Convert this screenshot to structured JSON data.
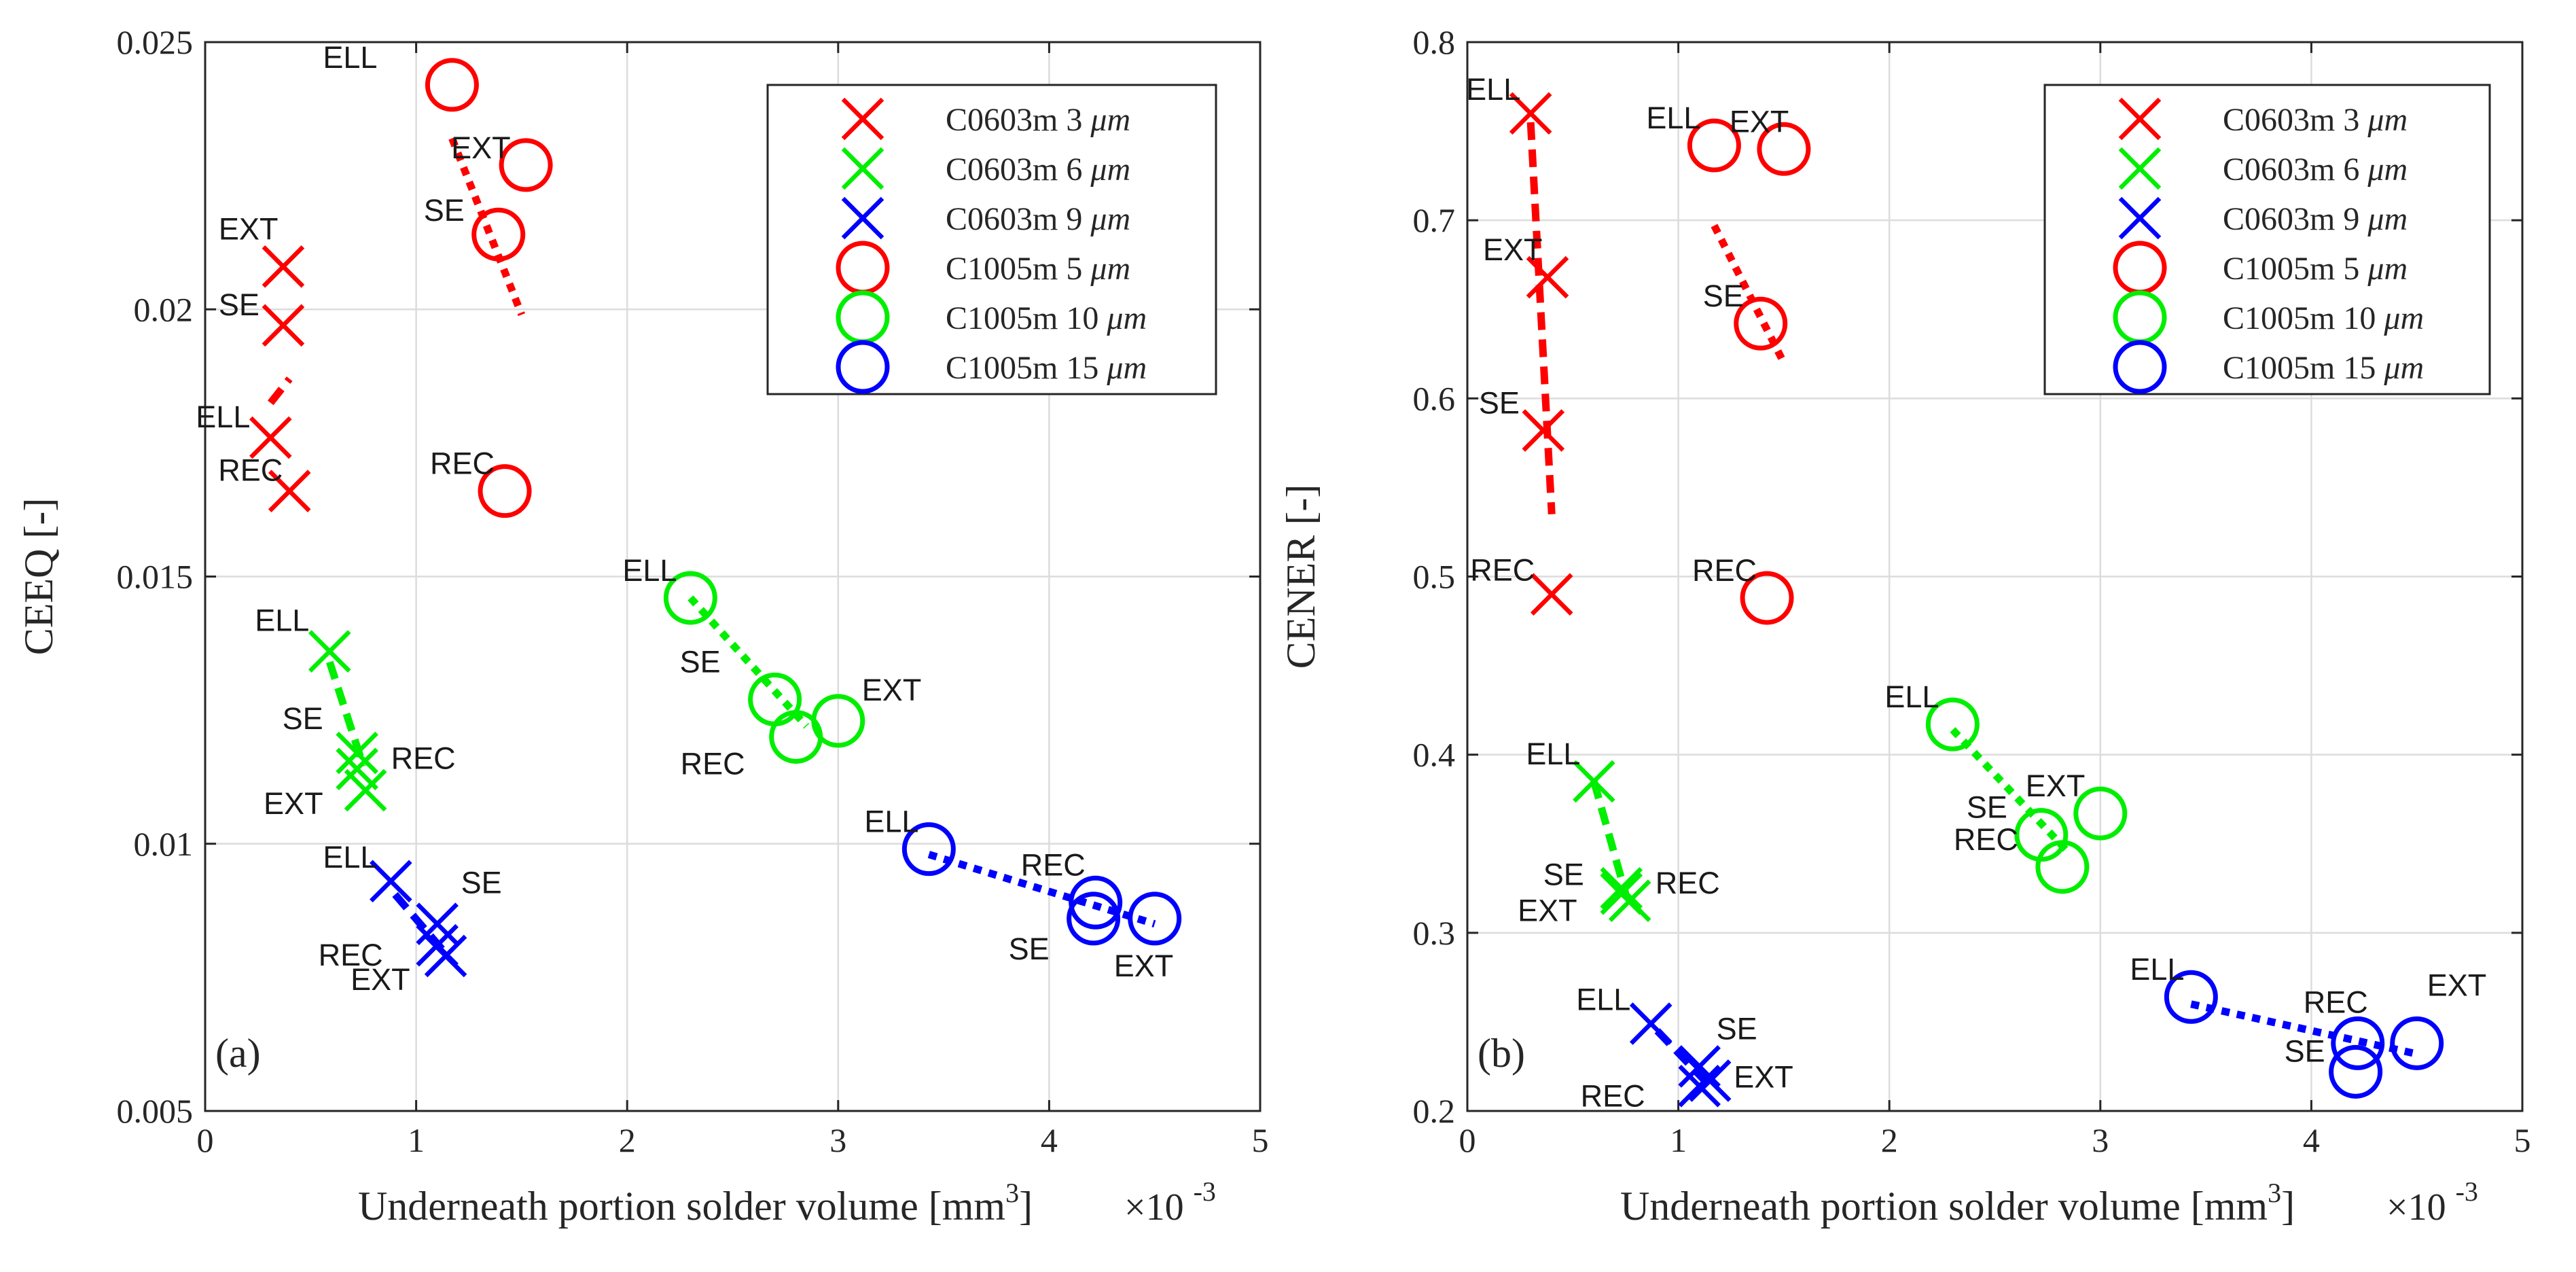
{
  "figure": {
    "caption_note": ""
  },
  "chart_data": [
    {
      "type": "scatter",
      "panel_label": "(a)",
      "xlabel": "Underneath portion solder volume [mm",
      "xlabel_sup": "3",
      "xlabel_tail": "]",
      "x_multiplier": "×10",
      "x_multiplier_exp": "-3",
      "ylabel": "CEEQ [-]",
      "xlim": [
        0,
        5
      ],
      "ylim": [
        0.005,
        0.025
      ],
      "xticks": [
        0,
        1,
        2,
        3,
        4,
        5
      ],
      "xtick_labels": [
        "0",
        "1",
        "2",
        "3",
        "4",
        "5"
      ],
      "yticks": [
        0.005,
        0.01,
        0.015,
        0.02,
        0.025
      ],
      "ytick_labels": [
        "0.005",
        "0.01",
        "0.015",
        "0.02",
        "0.025"
      ],
      "grid": true,
      "legend_position": "top-right",
      "series": [
        {
          "name": "C0603m 3 μm",
          "marker": "x",
          "color": "#ff0000",
          "line_style": "dash",
          "points": [
            {
              "label": "EXT",
              "x": 0.37,
              "y": 0.0208
            },
            {
              "label": "SE",
              "x": 0.37,
              "y": 0.0197
            },
            {
              "label": "ELL",
              "x": 0.31,
              "y": 0.0176
            },
            {
              "label": "REC",
              "x": 0.4,
              "y": 0.0166
            }
          ],
          "trend": {
            "x": [
              0.31,
              0.4
            ],
            "y": [
              0.01825,
              0.0187
            ]
          }
        },
        {
          "name": "C0603m 6 μm",
          "marker": "x",
          "color": "#00ee00",
          "line_style": "dash",
          "points": [
            {
              "label": "ELL",
              "x": 0.59,
              "y": 0.0136
            },
            {
              "label": "SE",
              "x": 0.72,
              "y": 0.0117
            },
            {
              "label": "REC",
              "x": 0.72,
              "y": 0.0114
            },
            {
              "label": "EXT",
              "x": 0.76,
              "y": 0.011
            }
          ],
          "trend": {
            "x": [
              0.59,
              0.75
            ],
            "y": [
              0.0134,
              0.01145
            ]
          }
        },
        {
          "name": "C0603m 9 μm",
          "marker": "x",
          "color": "#0000ff",
          "line_style": "dash",
          "points": [
            {
              "label": "ELL",
              "x": 0.88,
              "y": 0.0093
            },
            {
              "label": "SE",
              "x": 1.1,
              "y": 0.0085
            },
            {
              "label": "REC",
              "x": 1.1,
              "y": 0.0081
            },
            {
              "label": "EXT",
              "x": 1.14,
              "y": 0.0079
            }
          ],
          "trend": {
            "x": [
              0.9,
              1.15
            ],
            "y": [
              0.00905,
              0.0079
            ]
          }
        },
        {
          "name": "C1005m 5 μm",
          "marker": "o",
          "color": "#ff0000",
          "line_style": "dot",
          "points": [
            {
              "label": "ELL",
              "x": 1.17,
              "y": 0.0242
            },
            {
              "label": "EXT",
              "x": 1.52,
              "y": 0.0227
            },
            {
              "label": "SE",
              "x": 1.39,
              "y": 0.0214
            },
            {
              "label": "REC",
              "x": 1.42,
              "y": 0.0166
            }
          ],
          "trend": {
            "x": [
              1.17,
              1.5
            ],
            "y": [
              0.0232,
              0.0199
            ]
          }
        },
        {
          "name": "C1005m 10 μm",
          "marker": "o",
          "color": "#00ee00",
          "line_style": "dot",
          "points": [
            {
              "label": "ELL",
              "x": 2.3,
              "y": 0.0146
            },
            {
              "label": "SE",
              "x": 2.7,
              "y": 0.0127
            },
            {
              "label": "EXT",
              "x": 3.0,
              "y": 0.0123
            },
            {
              "label": "REC",
              "x": 2.8,
              "y": 0.012
            }
          ],
          "trend": {
            "x": [
              2.3,
              2.85
            ],
            "y": [
              0.0146,
              0.0122
            ]
          }
        },
        {
          "name": "C1005m 15 μm",
          "marker": "o",
          "color": "#0000ff",
          "line_style": "dot",
          "points": [
            {
              "label": "ELL",
              "x": 3.43,
              "y": 0.0099
            },
            {
              "label": "REC",
              "x": 4.22,
              "y": 0.0089
            },
            {
              "label": "SE",
              "x": 4.21,
              "y": 0.0086
            },
            {
              "label": "EXT",
              "x": 4.5,
              "y": 0.0086
            }
          ],
          "trend": {
            "x": [
              3.43,
              4.5
            ],
            "y": [
              0.0098,
              0.0085
            ]
          }
        }
      ]
    },
    {
      "type": "scatter",
      "panel_label": "(b)",
      "xlabel": "Underneath portion solder volume [mm",
      "xlabel_sup": "3",
      "xlabel_tail": "]",
      "x_multiplier": "×10",
      "x_multiplier_exp": "-3",
      "ylabel": "CENER [-]",
      "xlim": [
        0,
        5
      ],
      "ylim": [
        0.2,
        0.8
      ],
      "xticks": [
        0,
        1,
        2,
        3,
        4,
        5
      ],
      "xtick_labels": [
        "0",
        "1",
        "2",
        "3",
        "4",
        "5"
      ],
      "yticks": [
        0.2,
        0.3,
        0.4,
        0.5,
        0.6,
        0.7,
        0.8
      ],
      "ytick_labels": [
        "0.2",
        "0.3",
        "0.4",
        "0.5",
        "0.6",
        "0.7",
        "0.8"
      ],
      "grid": true,
      "legend_position": "top-right",
      "series": [
        {
          "name": "C0603m 3 μm",
          "marker": "x",
          "color": "#ff0000",
          "line_style": "dash",
          "points": [
            {
              "label": "ELL",
              "x": 0.3,
              "y": 0.76
            },
            {
              "label": "EXT",
              "x": 0.38,
              "y": 0.668
            },
            {
              "label": "SE",
              "x": 0.36,
              "y": 0.582
            },
            {
              "label": "REC",
              "x": 0.4,
              "y": 0.49
            }
          ],
          "trend": {
            "x": [
              0.3,
              0.4
            ],
            "y": [
              0.755,
              0.535
            ]
          }
        },
        {
          "name": "C0603m 6 μm",
          "marker": "x",
          "color": "#00ee00",
          "line_style": "dash",
          "points": [
            {
              "label": "ELL",
              "x": 0.6,
              "y": 0.385
            },
            {
              "label": "SE",
              "x": 0.73,
              "y": 0.325
            },
            {
              "label": "REC",
              "x": 0.73,
              "y": 0.322
            },
            {
              "label": "EXT",
              "x": 0.77,
              "y": 0.318
            }
          ],
          "trend": {
            "x": [
              0.6,
              0.75
            ],
            "y": [
              0.385,
              0.322
            ]
          }
        },
        {
          "name": "C0603m 9 μm",
          "marker": "x",
          "color": "#0000ff",
          "line_style": "dash",
          "points": [
            {
              "label": "ELL",
              "x": 0.87,
              "y": 0.249
            },
            {
              "label": "SE",
              "x": 1.1,
              "y": 0.225
            },
            {
              "label": "REC",
              "x": 1.1,
              "y": 0.214
            },
            {
              "label": "EXT",
              "x": 1.15,
              "y": 0.217
            }
          ],
          "trend": {
            "x": [
              0.9,
              1.15
            ],
            "y": [
              0.245,
              0.214
            ]
          }
        },
        {
          "name": "C1005m 5 μm",
          "marker": "o",
          "color": "#ff0000",
          "line_style": "dot",
          "points": [
            {
              "label": "ELL",
              "x": 1.17,
              "y": 0.742
            },
            {
              "label": "EXT",
              "x": 1.5,
              "y": 0.74
            },
            {
              "label": "SE",
              "x": 1.39,
              "y": 0.642
            },
            {
              "label": "REC",
              "x": 1.42,
              "y": 0.488
            }
          ],
          "trend": {
            "x": [
              1.17,
              1.5
            ],
            "y": [
              0.697,
              0.62
            ]
          }
        },
        {
          "name": "C1005m 10 μm",
          "marker": "o",
          "color": "#00ee00",
          "line_style": "dot",
          "points": [
            {
              "label": "ELL",
              "x": 2.3,
              "y": 0.417
            },
            {
              "label": "EXT",
              "x": 3.0,
              "y": 0.367
            },
            {
              "label": "SE",
              "x": 2.72,
              "y": 0.355
            },
            {
              "label": "REC",
              "x": 2.82,
              "y": 0.337
            }
          ],
          "trend": {
            "x": [
              2.3,
              2.85
            ],
            "y": [
              0.414,
              0.345
            ]
          }
        },
        {
          "name": "C1005m 15 μm",
          "marker": "o",
          "color": "#0000ff",
          "line_style": "dot",
          "points": [
            {
              "label": "ELL",
              "x": 3.43,
              "y": 0.264
            },
            {
              "label": "REC",
              "x": 4.22,
              "y": 0.238
            },
            {
              "label": "SE",
              "x": 4.21,
              "y": 0.222
            },
            {
              "label": "EXT",
              "x": 4.5,
              "y": 0.238
            }
          ],
          "trend": {
            "x": [
              3.43,
              4.5
            ],
            "y": [
              0.26,
              0.232
            ]
          }
        }
      ]
    }
  ]
}
